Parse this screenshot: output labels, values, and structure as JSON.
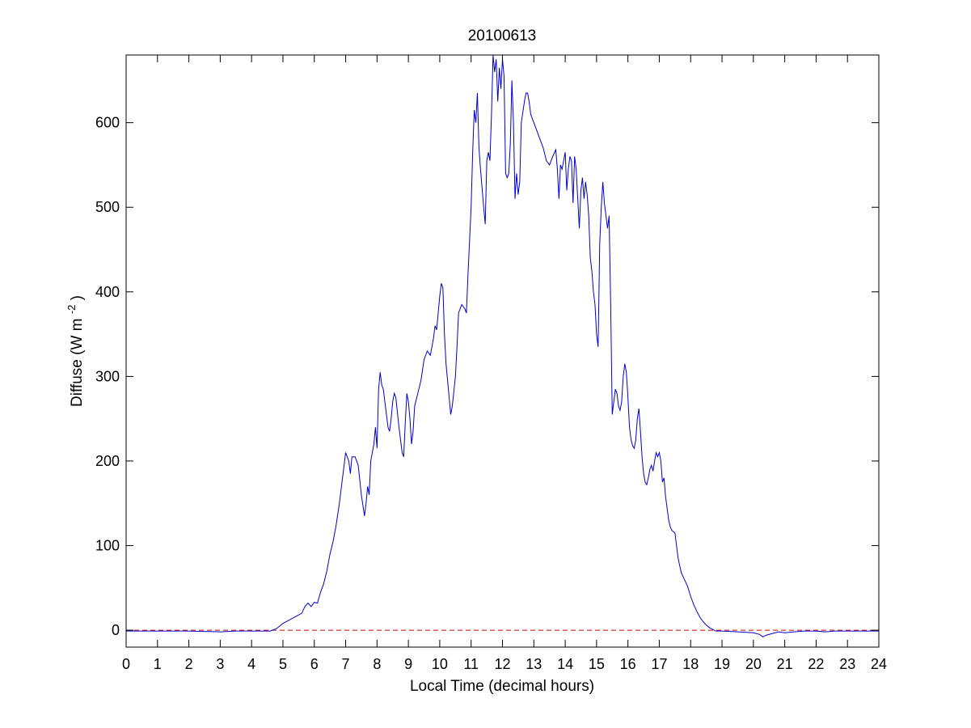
{
  "chart_data": {
    "type": "line",
    "title": "20100613",
    "xlabel": "Local Time (decimal hours)",
    "ylabel": "Diffuse (W m",
    "ylabel_superscript": "-2",
    "ylabel_close": ")",
    "xlim": [
      0,
      24
    ],
    "ylim": [
      -20,
      680
    ],
    "xticks": [
      0,
      1,
      2,
      3,
      4,
      5,
      6,
      7,
      8,
      9,
      10,
      11,
      12,
      13,
      14,
      15,
      16,
      17,
      18,
      19,
      20,
      21,
      22,
      23,
      24
    ],
    "yticks": [
      0,
      100,
      200,
      300,
      400,
      500,
      600
    ],
    "grid": false,
    "series": [
      {
        "color": "#0000cc",
        "style": "solid",
        "points": [
          [
            0,
            -1
          ],
          [
            1,
            -1
          ],
          [
            2,
            -1
          ],
          [
            3,
            -2
          ],
          [
            3.5,
            -1
          ],
          [
            4,
            -1
          ],
          [
            4.6,
            -1
          ],
          [
            4.8,
            2
          ],
          [
            5.0,
            8
          ],
          [
            5.2,
            12
          ],
          [
            5.4,
            16
          ],
          [
            5.6,
            20
          ],
          [
            5.7,
            28
          ],
          [
            5.8,
            32
          ],
          [
            5.9,
            28
          ],
          [
            6.0,
            33
          ],
          [
            6.1,
            32
          ],
          [
            6.2,
            45
          ],
          [
            6.3,
            55
          ],
          [
            6.4,
            70
          ],
          [
            6.5,
            90
          ],
          [
            6.6,
            105
          ],
          [
            6.7,
            125
          ],
          [
            6.8,
            150
          ],
          [
            6.9,
            180
          ],
          [
            7.0,
            210
          ],
          [
            7.1,
            200
          ],
          [
            7.15,
            185
          ],
          [
            7.2,
            205
          ],
          [
            7.3,
            205
          ],
          [
            7.4,
            195
          ],
          [
            7.5,
            160
          ],
          [
            7.6,
            135
          ],
          [
            7.65,
            150
          ],
          [
            7.7,
            170
          ],
          [
            7.75,
            160
          ],
          [
            7.8,
            200
          ],
          [
            7.9,
            220
          ],
          [
            7.95,
            240
          ],
          [
            8.0,
            215
          ],
          [
            8.05,
            285
          ],
          [
            8.1,
            305
          ],
          [
            8.15,
            290
          ],
          [
            8.2,
            285
          ],
          [
            8.3,
            255
          ],
          [
            8.35,
            240
          ],
          [
            8.4,
            235
          ],
          [
            8.45,
            250
          ],
          [
            8.5,
            270
          ],
          [
            8.55,
            280
          ],
          [
            8.6,
            275
          ],
          [
            8.7,
            240
          ],
          [
            8.8,
            210
          ],
          [
            8.85,
            205
          ],
          [
            8.9,
            245
          ],
          [
            8.95,
            280
          ],
          [
            9.0,
            270
          ],
          [
            9.05,
            250
          ],
          [
            9.1,
            220
          ],
          [
            9.15,
            235
          ],
          [
            9.2,
            265
          ],
          [
            9.3,
            280
          ],
          [
            9.4,
            295
          ],
          [
            9.5,
            320
          ],
          [
            9.6,
            330
          ],
          [
            9.7,
            325
          ],
          [
            9.8,
            345
          ],
          [
            9.85,
            360
          ],
          [
            9.9,
            355
          ],
          [
            9.95,
            375
          ],
          [
            10.0,
            395
          ],
          [
            10.05,
            410
          ],
          [
            10.1,
            405
          ],
          [
            10.15,
            350
          ],
          [
            10.2,
            315
          ],
          [
            10.3,
            275
          ],
          [
            10.35,
            255
          ],
          [
            10.4,
            265
          ],
          [
            10.5,
            300
          ],
          [
            10.55,
            335
          ],
          [
            10.6,
            375
          ],
          [
            10.7,
            385
          ],
          [
            10.8,
            380
          ],
          [
            10.85,
            375
          ],
          [
            10.9,
            420
          ],
          [
            11.0,
            500
          ],
          [
            11.05,
            565
          ],
          [
            11.1,
            615
          ],
          [
            11.15,
            600
          ],
          [
            11.2,
            635
          ],
          [
            11.25,
            570
          ],
          [
            11.3,
            545
          ],
          [
            11.4,
            500
          ],
          [
            11.45,
            480
          ],
          [
            11.5,
            555
          ],
          [
            11.55,
            565
          ],
          [
            11.6,
            555
          ],
          [
            11.65,
            610
          ],
          [
            11.7,
            680
          ],
          [
            11.75,
            660
          ],
          [
            11.8,
            675
          ],
          [
            11.85,
            625
          ],
          [
            11.9,
            665
          ],
          [
            11.95,
            640
          ],
          [
            12.0,
            675
          ],
          [
            12.05,
            655
          ],
          [
            12.1,
            540
          ],
          [
            12.15,
            535
          ],
          [
            12.2,
            540
          ],
          [
            12.25,
            575
          ],
          [
            12.3,
            650
          ],
          [
            12.35,
            600
          ],
          [
            12.4,
            510
          ],
          [
            12.45,
            540
          ],
          [
            12.5,
            515
          ],
          [
            12.55,
            530
          ],
          [
            12.6,
            600
          ],
          [
            12.7,
            625
          ],
          [
            12.75,
            635
          ],
          [
            12.8,
            635
          ],
          [
            12.85,
            625
          ],
          [
            12.9,
            610
          ],
          [
            13.0,
            600
          ],
          [
            13.1,
            590
          ],
          [
            13.2,
            580
          ],
          [
            13.3,
            570
          ],
          [
            13.4,
            555
          ],
          [
            13.5,
            550
          ],
          [
            13.6,
            560
          ],
          [
            13.7,
            568
          ],
          [
            13.75,
            545
          ],
          [
            13.8,
            510
          ],
          [
            13.85,
            550
          ],
          [
            13.9,
            545
          ],
          [
            14.0,
            565
          ],
          [
            14.05,
            520
          ],
          [
            14.1,
            545
          ],
          [
            14.15,
            560
          ],
          [
            14.2,
            555
          ],
          [
            14.25,
            505
          ],
          [
            14.3,
            560
          ],
          [
            14.35,
            545
          ],
          [
            14.4,
            510
          ],
          [
            14.45,
            475
          ],
          [
            14.5,
            520
          ],
          [
            14.55,
            535
          ],
          [
            14.6,
            510
          ],
          [
            14.65,
            530
          ],
          [
            14.7,
            515
          ],
          [
            14.75,
            490
          ],
          [
            14.8,
            440
          ],
          [
            14.85,
            425
          ],
          [
            14.9,
            400
          ],
          [
            14.95,
            385
          ],
          [
            15.0,
            350
          ],
          [
            15.05,
            335
          ],
          [
            15.1,
            455
          ],
          [
            15.15,
            500
          ],
          [
            15.2,
            530
          ],
          [
            15.25,
            505
          ],
          [
            15.3,
            490
          ],
          [
            15.35,
            475
          ],
          [
            15.4,
            490
          ],
          [
            15.45,
            385
          ],
          [
            15.5,
            255
          ],
          [
            15.55,
            270
          ],
          [
            15.6,
            285
          ],
          [
            15.65,
            280
          ],
          [
            15.7,
            265
          ],
          [
            15.75,
            260
          ],
          [
            15.8,
            270
          ],
          [
            15.85,
            300
          ],
          [
            15.9,
            315
          ],
          [
            15.95,
            305
          ],
          [
            16.0,
            275
          ],
          [
            16.05,
            240
          ],
          [
            16.1,
            225
          ],
          [
            16.15,
            218
          ],
          [
            16.2,
            215
          ],
          [
            16.25,
            225
          ],
          [
            16.3,
            250
          ],
          [
            16.35,
            262
          ],
          [
            16.4,
            235
          ],
          [
            16.45,
            205
          ],
          [
            16.5,
            185
          ],
          [
            16.55,
            175
          ],
          [
            16.6,
            172
          ],
          [
            16.65,
            180
          ],
          [
            16.7,
            190
          ],
          [
            16.75,
            195
          ],
          [
            16.8,
            188
          ],
          [
            16.85,
            200
          ],
          [
            16.9,
            210
          ],
          [
            16.95,
            205
          ],
          [
            17.0,
            210
          ],
          [
            17.05,
            200
          ],
          [
            17.1,
            175
          ],
          [
            17.15,
            180
          ],
          [
            17.2,
            158
          ],
          [
            17.3,
            130
          ],
          [
            17.35,
            122
          ],
          [
            17.4,
            118
          ],
          [
            17.5,
            115
          ],
          [
            17.55,
            100
          ],
          [
            17.6,
            85
          ],
          [
            17.7,
            68
          ],
          [
            17.8,
            60
          ],
          [
            17.9,
            52
          ],
          [
            18.0,
            40
          ],
          [
            18.1,
            30
          ],
          [
            18.2,
            22
          ],
          [
            18.3,
            15
          ],
          [
            18.4,
            10
          ],
          [
            18.5,
            6
          ],
          [
            18.6,
            3
          ],
          [
            18.7,
            1
          ],
          [
            18.8,
            -1
          ],
          [
            19.0,
            -1
          ],
          [
            19.5,
            -2
          ],
          [
            20.0,
            -3
          ],
          [
            20.2,
            -5
          ],
          [
            20.3,
            -8
          ],
          [
            20.4,
            -6
          ],
          [
            20.6,
            -4
          ],
          [
            20.8,
            -2
          ],
          [
            21.0,
            -3
          ],
          [
            21.3,
            -2
          ],
          [
            21.6,
            -1
          ],
          [
            22.0,
            -1
          ],
          [
            22.3,
            -2
          ],
          [
            22.6,
            -1
          ],
          [
            23.0,
            -1
          ],
          [
            23.5,
            -1
          ],
          [
            24.0,
            -1
          ]
        ]
      },
      {
        "color": "#cc0000",
        "style": "dashed",
        "points": [
          [
            0,
            0
          ],
          [
            24,
            0
          ]
        ]
      }
    ]
  }
}
